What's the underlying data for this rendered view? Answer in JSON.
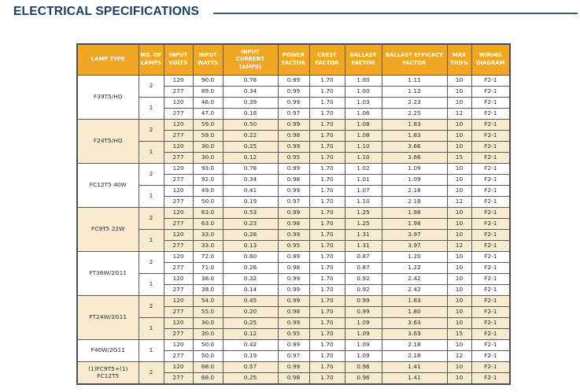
{
  "title": "ELECTRICAL SPECIFICATIONS",
  "colors": {
    "title_text": "#1b3c63",
    "title_rule": "#45586b",
    "header_bg": "#f1a722",
    "header_text": "#ffffff",
    "shaded_row_bg": "#f9ebcf",
    "plain_row_bg": "#ffffff",
    "cell_text": "#2d2d2d",
    "border": "#5a5a5a"
  },
  "table": {
    "columns": [
      "LAMP TYPE",
      "NO. OF\nLAMPS",
      "INPUT\nVOLTS",
      "INPUT\nWATTS",
      "INPUT\nCURRENT\n(AMPS)",
      "POWER\nFACTOR",
      "CREST\nFACTOR",
      "BALLAST\nFACTOR",
      "BALLAST EFFICACY\nFACTOR",
      "MAX\nTHD%",
      "WIRING\nDIAGRAM"
    ],
    "groups": [
      {
        "lamp_type": "F39T5/HO",
        "shaded": false,
        "lamp_counts": [
          {
            "count": "2",
            "rows": [
              [
                "120",
                "90.0",
                "0.78",
                "0.99",
                "1.70",
                "1.00",
                "1.11",
                "10",
                "F2-1"
              ],
              [
                "277",
                "89.0",
                "0.34",
                "0.99",
                "1.70",
                "1.00",
                "1.12",
                "10",
                "F2-1"
              ]
            ]
          },
          {
            "count": "1",
            "rows": [
              [
                "120",
                "46.0",
                "0.39",
                "0.99",
                "1.70",
                "1.03",
                "2.23",
                "10",
                "F2-1"
              ],
              [
                "277",
                "47.0",
                "0.18",
                "0.97",
                "1.70",
                "1.06",
                "2.25",
                "12",
                "F2-1"
              ]
            ]
          }
        ]
      },
      {
        "lamp_type": "F24T5/HO",
        "shaded": true,
        "lamp_counts": [
          {
            "count": "2",
            "rows": [
              [
                "120",
                "59.0",
                "0.50",
                "0.99",
                "1.70",
                "1.08",
                "1.83",
                "10",
                "F2-1"
              ],
              [
                "277",
                "59.0",
                "0.22",
                "0.98",
                "1.70",
                "1.08",
                "1.83",
                "10",
                "F2-1"
              ]
            ]
          },
          {
            "count": "1",
            "rows": [
              [
                "120",
                "30.0",
                "0.25",
                "0.99",
                "1.70",
                "1.10",
                "3.66",
                "10",
                "F2-1"
              ],
              [
                "277",
                "30.0",
                "0.12",
                "0.95",
                "1.70",
                "1.10",
                "3.66",
                "15",
                "F2-1"
              ]
            ]
          }
        ]
      },
      {
        "lamp_type": "FC12T5 40W",
        "shaded": false,
        "lamp_counts": [
          {
            "count": "2",
            "rows": [
              [
                "120",
                "93.0",
                "0.78",
                "0.99",
                "1.70",
                "1.02",
                "1.09",
                "10",
                "F2-1"
              ],
              [
                "277",
                "92.0",
                "0.34",
                "0.98",
                "1.70",
                "1.01",
                "1.09",
                "10",
                "F2-1"
              ]
            ]
          },
          {
            "count": "1",
            "rows": [
              [
                "120",
                "49.0",
                "0.41",
                "0.99",
                "1.70",
                "1.07",
                "2.18",
                "10",
                "F2-1"
              ],
              [
                "277",
                "50.0",
                "0.19",
                "0.97",
                "1.70",
                "1.10",
                "2.18",
                "12",
                "F2-1"
              ]
            ]
          }
        ]
      },
      {
        "lamp_type": "FC9T5 22W",
        "shaded": true,
        "lamp_counts": [
          {
            "count": "2",
            "rows": [
              [
                "120",
                "63.0",
                "0.53",
                "0.99",
                "1.70",
                "1.25",
                "1.98",
                "10",
                "F2-1"
              ],
              [
                "277",
                "63.0",
                "0.23",
                "0.98",
                "1.70",
                "1.25",
                "1.98",
                "10",
                "F2-1"
              ]
            ]
          },
          {
            "count": "1",
            "rows": [
              [
                "120",
                "33.0",
                "0.28",
                "0.99",
                "1.70",
                "1.31",
                "3.97",
                "10",
                "F2-1"
              ],
              [
                "277",
                "33.0",
                "0.13",
                "0.95",
                "1.70",
                "1.31",
                "3.97",
                "12",
                "F2-1"
              ]
            ]
          }
        ]
      },
      {
        "lamp_type": "FT36W/2G11",
        "shaded": false,
        "lamp_counts": [
          {
            "count": "2",
            "rows": [
              [
                "120",
                "72.0",
                "0.60",
                "0.99",
                "1.70",
                "0.87",
                "1.20",
                "10",
                "F2-1"
              ],
              [
                "277",
                "71.0",
                "0.26",
                "0.98",
                "1.70",
                "0.87",
                "1.22",
                "10",
                "F2-1"
              ]
            ]
          },
          {
            "count": "1",
            "rows": [
              [
                "120",
                "38.0",
                "0.32",
                "0.99",
                "1.70",
                "0.92",
                "2.42",
                "10",
                "F2-1"
              ],
              [
                "277",
                "38.0",
                "0.14",
                "0.99",
                "1.70",
                "0.92",
                "2.42",
                "10",
                "F2-1"
              ]
            ]
          }
        ]
      },
      {
        "lamp_type": "FT24W/2G11",
        "shaded": true,
        "lamp_counts": [
          {
            "count": "2",
            "rows": [
              [
                "120",
                "54.0",
                "0.45",
                "0.99",
                "1.70",
                "0.99",
                "1.83",
                "10",
                "F2-1"
              ],
              [
                "277",
                "55.0",
                "0.20",
                "0.98",
                "1.70",
                "0.99",
                "1.80",
                "10",
                "F2-1"
              ]
            ]
          },
          {
            "count": "1",
            "rows": [
              [
                "120",
                "30.0",
                "0.25",
                "0.99",
                "1.70",
                "1.09",
                "3.63",
                "10",
                "F2-1"
              ],
              [
                "277",
                "30.0",
                "0.12",
                "0.95",
                "1.70",
                "1.09",
                "3.63",
                "15",
                "F2-1"
              ]
            ]
          }
        ]
      },
      {
        "lamp_type": "F40W/2G11",
        "shaded": false,
        "lamp_counts": [
          {
            "count": "1",
            "rows": [
              [
                "120",
                "50.0",
                "0.42",
                "0.99",
                "1.70",
                "1.09",
                "2.18",
                "10",
                "F2-1"
              ],
              [
                "277",
                "50.0",
                "0.19",
                "0.97",
                "1.70",
                "1.09",
                "2.18",
                "12",
                "F2-1"
              ]
            ]
          }
        ]
      },
      {
        "lamp_type": "(1)FC9T5+(1)\nFC12T5",
        "shaded": true,
        "lamp_counts": [
          {
            "count": "2",
            "rows": [
              [
                "120",
                "68.0",
                "0.57",
                "0.99",
                "1.70",
                "0.96",
                "1.41",
                "10",
                "F2-1"
              ],
              [
                "277",
                "68.0",
                "0.25",
                "0.98",
                "1.70",
                "0.96",
                "1.41",
                "10",
                "F2-1"
              ]
            ]
          }
        ]
      }
    ]
  }
}
